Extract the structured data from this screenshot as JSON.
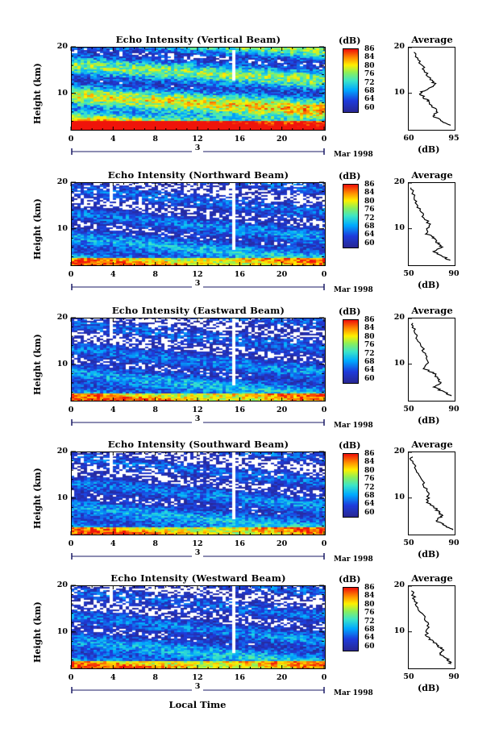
{
  "panels": [
    {
      "title": "Echo Intensity (Vertical Beam)",
      "beam": "vertical",
      "avg_x_range": [
        60,
        95
      ],
      "avg_x_labels": [
        "60",
        "95"
      ],
      "avg_x_mid": null
    },
    {
      "title": "Echo Intensity (Northward Beam)",
      "beam": "north",
      "avg_x_range": [
        50,
        90
      ],
      "avg_x_labels": [
        "50",
        "90"
      ],
      "avg_x_mid": null
    },
    {
      "title": "Echo Intensity (Eastward Beam)",
      "beam": "east",
      "avg_x_range": [
        50,
        90
      ],
      "avg_x_labels": [
        "50",
        "90"
      ],
      "avg_x_mid": null
    },
    {
      "title": "Echo Intensity (Southward Beam)",
      "beam": "south",
      "avg_x_range": [
        50,
        90
      ],
      "avg_x_labels": [
        "50",
        "90"
      ],
      "avg_x_mid": null
    },
    {
      "title": "Echo Intensity (Westward Beam)",
      "beam": "west",
      "avg_x_range": [
        50,
        90
      ],
      "avg_x_labels": [
        "50",
        "90"
      ],
      "avg_x_mid": null
    }
  ],
  "y_axis_label": "Height (km)",
  "y_ticks": [
    "20",
    "10"
  ],
  "x_ticks": [
    "0",
    "4",
    "8",
    "12",
    "16",
    "20",
    "0"
  ],
  "day_label": "3",
  "month_label": "Mar 1998",
  "x_axis_title": "Local Time",
  "colorbar_unit": "(dB)",
  "colorbar_ticks": [
    "86",
    "84",
    "80",
    "76",
    "72",
    "68",
    "64",
    "60"
  ],
  "avg_title": "Average",
  "avg_unit": "(dB)",
  "avg_y_ticks": [
    "20",
    "10"
  ],
  "colors": {
    "low": "#2b2b9e",
    "mid": "#00c8ff",
    "high": "#ff2a00"
  },
  "chart_data": [
    {
      "type": "heatmap",
      "title": "Echo Intensity (Vertical Beam)",
      "xlabel": "",
      "ylabel": "Height (km)",
      "xlim": [
        0,
        24
      ],
      "ylim": [
        2,
        20
      ],
      "colorbar": {
        "label": "(dB)",
        "range": [
          60,
          88
        ]
      },
      "profile": {
        "title": "Average",
        "xlabel": "(dB)",
        "x_range": [
          60,
          95
        ],
        "heights_km": [
          19,
          17,
          15,
          13,
          12,
          11,
          10,
          9,
          8,
          6,
          5,
          4,
          3
        ],
        "values_db": [
          65,
          68,
          72,
          76,
          80,
          75,
          68,
          72,
          76,
          82,
          78,
          85,
          92
        ]
      }
    },
    {
      "type": "heatmap",
      "title": "Echo Intensity (Northward Beam)",
      "xlabel": "",
      "ylabel": "Height (km)",
      "xlim": [
        0,
        24
      ],
      "ylim": [
        2,
        20
      ],
      "colorbar": {
        "label": "(dB)",
        "range": [
          60,
          88
        ]
      },
      "profile": {
        "title": "Average",
        "xlabel": "(dB)",
        "x_range": [
          50,
          90
        ],
        "heights_km": [
          19,
          17,
          15,
          13,
          11,
          9,
          8,
          7,
          6,
          5,
          4,
          3
        ],
        "values_db": [
          52,
          55,
          58,
          62,
          68,
          65,
          72,
          75,
          78,
          72,
          80,
          86
        ]
      }
    },
    {
      "type": "heatmap",
      "title": "Echo Intensity (Eastward Beam)",
      "xlabel": "",
      "ylabel": "Height (km)",
      "xlim": [
        0,
        24
      ],
      "ylim": [
        2,
        20
      ],
      "colorbar": {
        "label": "(dB)",
        "range": [
          60,
          88
        ]
      },
      "profile": {
        "title": "Average",
        "xlabel": "(dB)",
        "x_range": [
          50,
          90
        ],
        "heights_km": [
          19,
          17,
          15,
          13,
          11,
          9,
          8,
          7,
          6,
          5,
          4,
          3
        ],
        "values_db": [
          53,
          56,
          58,
          63,
          67,
          64,
          72,
          74,
          78,
          72,
          80,
          87
        ]
      }
    },
    {
      "type": "heatmap",
      "title": "Echo Intensity (Southward Beam)",
      "xlabel": "",
      "ylabel": "Height (km)",
      "xlim": [
        0,
        24
      ],
      "ylim": [
        2,
        20
      ],
      "colorbar": {
        "label": "(dB)",
        "range": [
          60,
          88
        ]
      },
      "profile": {
        "title": "Average",
        "xlabel": "(dB)",
        "x_range": [
          50,
          90
        ],
        "heights_km": [
          19,
          17,
          15,
          13,
          11,
          9,
          8,
          7,
          6,
          5,
          4,
          3
        ],
        "values_db": [
          52,
          55,
          59,
          63,
          68,
          66,
          72,
          76,
          79,
          74,
          82,
          88
        ]
      }
    },
    {
      "type": "heatmap",
      "title": "Echo Intensity (Westward Beam)",
      "xlabel": "Local Time",
      "ylabel": "Height (km)",
      "xlim": [
        0,
        24
      ],
      "ylim": [
        2,
        20
      ],
      "colorbar": {
        "label": "(dB)",
        "range": [
          60,
          88
        ]
      },
      "profile": {
        "title": "Average",
        "xlabel": "(dB)",
        "x_range": [
          50,
          90
        ],
        "heights_km": [
          19,
          17,
          15,
          13,
          11,
          9,
          8,
          7,
          6,
          5,
          4,
          3
        ],
        "values_db": [
          53,
          55,
          58,
          64,
          67,
          65,
          71,
          75,
          80,
          77,
          84,
          87
        ]
      }
    }
  ]
}
